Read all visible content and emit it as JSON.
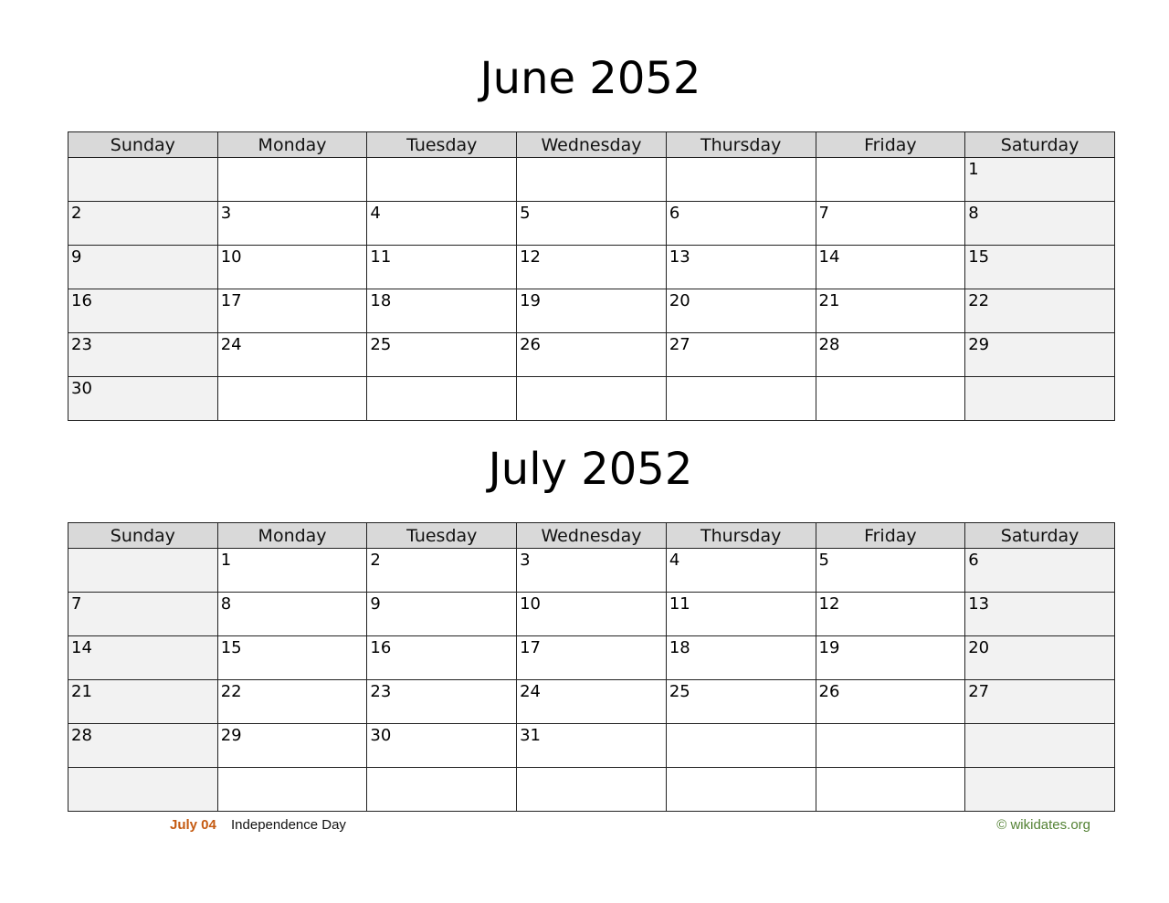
{
  "weekdays": [
    "Sunday",
    "Monday",
    "Tuesday",
    "Wednesday",
    "Thursday",
    "Friday",
    "Saturday"
  ],
  "months": [
    {
      "title": "June 2052",
      "weeks": [
        [
          "",
          "",
          "",
          "",
          "",
          "",
          "1"
        ],
        [
          "2",
          "3",
          "4",
          "5",
          "6",
          "7",
          "8"
        ],
        [
          "9",
          "10",
          "11",
          "12",
          "13",
          "14",
          "15"
        ],
        [
          "16",
          "17",
          "18",
          "19",
          "20",
          "21",
          "22"
        ],
        [
          "23",
          "24",
          "25",
          "26",
          "27",
          "28",
          "29"
        ],
        [
          "30",
          "",
          "",
          "",
          "",
          "",
          ""
        ]
      ]
    },
    {
      "title": "July 2052",
      "weeks": [
        [
          "",
          "1",
          "2",
          "3",
          "4",
          "5",
          "6"
        ],
        [
          "7",
          "8",
          "9",
          "10",
          "11",
          "12",
          "13"
        ],
        [
          "14",
          "15",
          "16",
          "17",
          "18",
          "19",
          "20"
        ],
        [
          "21",
          "22",
          "23",
          "24",
          "25",
          "26",
          "27"
        ],
        [
          "28",
          "29",
          "30",
          "31",
          "",
          "",
          ""
        ],
        [
          "",
          "",
          "",
          "",
          "",
          "",
          ""
        ]
      ]
    }
  ],
  "holidays": [
    {
      "date": "July 04",
      "name": "Independence Day"
    }
  ],
  "footer": {
    "credit": "© wikidates.org"
  },
  "colors": {
    "holiday_date": "#c55a11",
    "credit": "#548235",
    "header_bg": "#d9d9d9",
    "weekend_bg": "#f2f2f2"
  }
}
